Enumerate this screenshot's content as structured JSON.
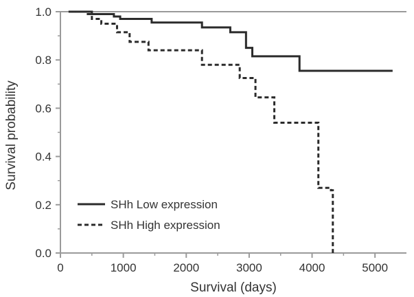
{
  "chart_data": {
    "type": "line",
    "xlabel": "Survival (days)",
    "ylabel": "Survival probability",
    "xlim": [
      0,
      5500
    ],
    "ylim": [
      0,
      1.0
    ],
    "xticks": [
      0,
      1000,
      2000,
      3000,
      4000,
      5000
    ],
    "yticks": [
      0.0,
      0.2,
      0.4,
      0.6,
      0.8,
      1.0
    ],
    "ytick_labels": [
      "0.0",
      "0.2",
      "0.4",
      "0.6",
      "0.8",
      "1.0"
    ],
    "legend_position": "lower-left",
    "series": [
      {
        "name": "SHh Low expression",
        "style": "solid",
        "color": "#2b2b2b",
        "x": [
          130,
          500,
          850,
          950,
          1450,
          2250,
          2700,
          2950,
          3050,
          3800,
          5280
        ],
        "y": [
          1.0,
          0.99,
          0.98,
          0.97,
          0.955,
          0.935,
          0.915,
          0.85,
          0.815,
          0.755,
          0.755
        ]
      },
      {
        "name": "SHh High expression",
        "style": "dashed",
        "color": "#2b2b2b",
        "x": [
          130,
          400,
          500,
          650,
          900,
          1100,
          1400,
          2250,
          2850,
          3100,
          3400,
          4100,
          4300,
          4330
        ],
        "y": [
          1.0,
          0.99,
          0.97,
          0.95,
          0.915,
          0.875,
          0.84,
          0.78,
          0.725,
          0.645,
          0.54,
          0.27,
          0.26,
          0.0
        ]
      }
    ]
  }
}
